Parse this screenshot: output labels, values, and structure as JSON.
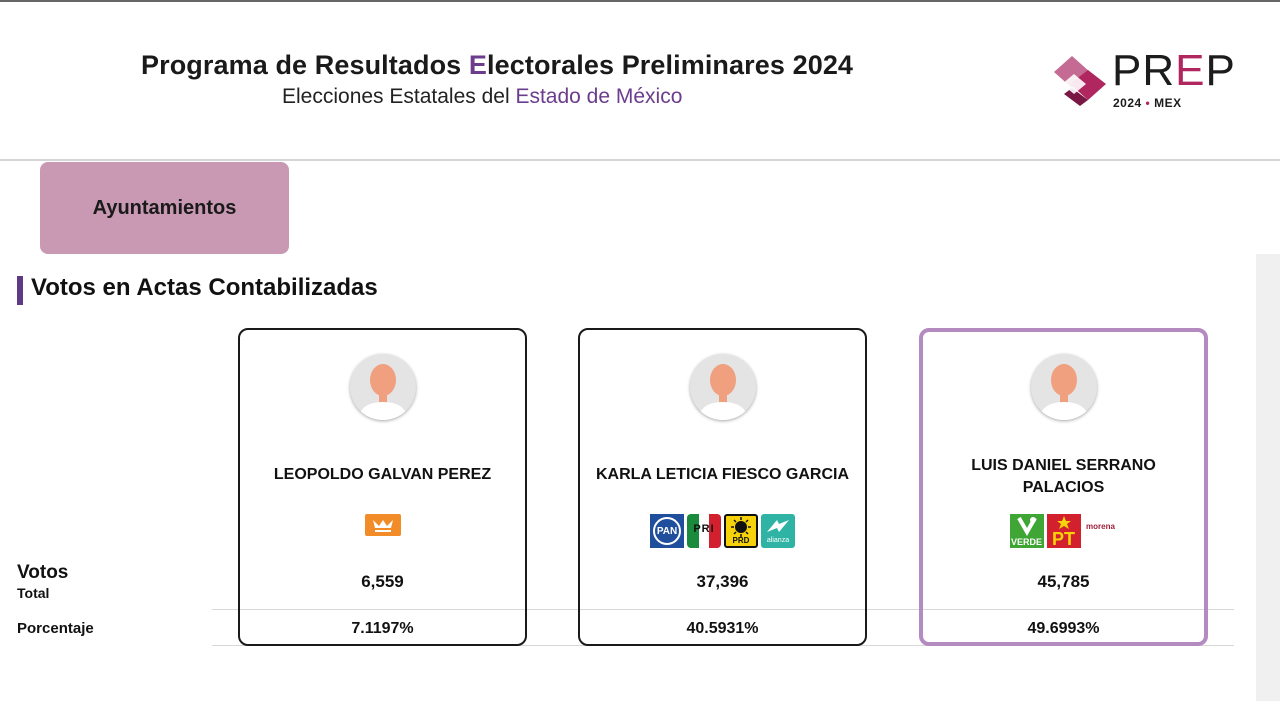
{
  "header": {
    "title_part1": "Programa de Resultados ",
    "title_highlight": "E",
    "title_part2": "lectorales Preliminares 2024",
    "subtitle_part1": "Elecciones Estatales del ",
    "subtitle_highlight": "Estado de México",
    "logo": {
      "word_p": "PR",
      "word_e": "E",
      "word_end": "P",
      "year": "2024",
      "dot": "•",
      "state": "MEX"
    }
  },
  "tab": {
    "label": "Ayuntamientos"
  },
  "section": {
    "title": "Votos en Actas Contabilizadas"
  },
  "row_labels": {
    "votos": "Votos",
    "total": "Total",
    "porcentaje": "Porcentaje"
  },
  "candidates": [
    {
      "name": "LEOPOLDO GALVAN PEREZ",
      "votes": "6,559",
      "percent": "7.1197%",
      "parties": [
        "movimiento-ciudadano"
      ]
    },
    {
      "name": "KARLA LETICIA FIESCO GARCIA",
      "votes": "37,396",
      "percent": "40.5931%",
      "parties": [
        "pan",
        "pri",
        "prd",
        "nueva-alianza"
      ]
    },
    {
      "name": "LUIS DANIEL SERRANO PALACIOS",
      "votes": "45,785",
      "percent": "49.6993%",
      "parties": [
        "pvem",
        "pt",
        "morena"
      ],
      "leading": true
    }
  ],
  "party_labels": {
    "pan": "PAN",
    "pri": "PRI",
    "prd": "PRD",
    "alianza": "alianza",
    "verde": "VERDE",
    "pt": "PT",
    "morena": "morena"
  },
  "colors": {
    "accent_purple": "#6b3d8c",
    "tab_pink": "#c998b3",
    "logo_magenta": "#b0265f",
    "winner_border": "#b48bc1"
  }
}
